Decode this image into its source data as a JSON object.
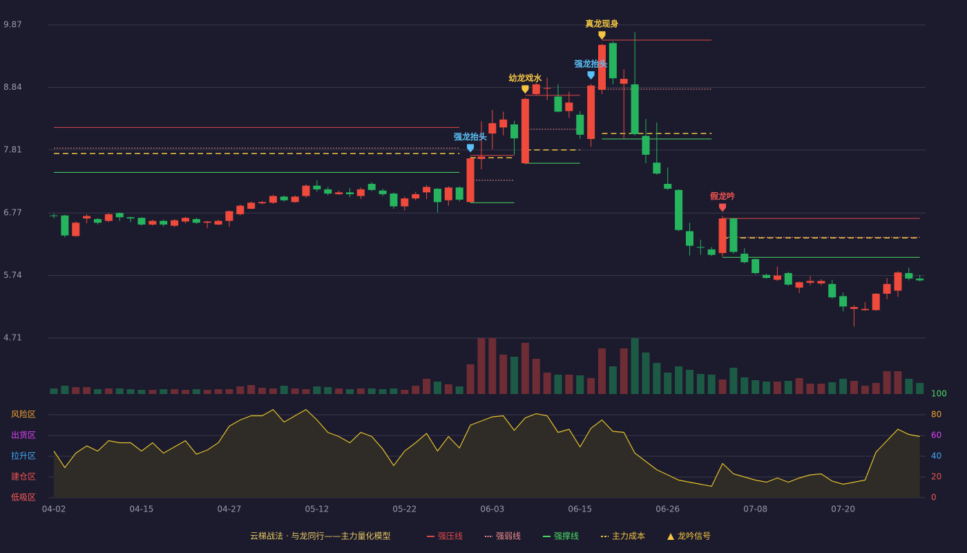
{
  "chart_data": {
    "type": "candlestick",
    "categories": [
      "04-02",
      null,
      null,
      null,
      null,
      null,
      null,
      null,
      "04-15",
      null,
      null,
      null,
      null,
      null,
      null,
      null,
      "04-27",
      null,
      null,
      null,
      null,
      null,
      null,
      null,
      "05-12",
      null,
      null,
      null,
      null,
      null,
      null,
      null,
      "05-22",
      null,
      null,
      null,
      null,
      null,
      null,
      null,
      "06-03",
      null,
      null,
      null,
      null,
      null,
      null,
      null,
      "06-15",
      null,
      null,
      null,
      null,
      null,
      null,
      null,
      "06-26",
      null,
      null,
      null,
      null,
      null,
      null,
      null,
      "07-08",
      null,
      null,
      null,
      null,
      null,
      null,
      null,
      "07-20",
      null,
      null,
      null,
      null,
      null,
      null,
      null
    ],
    "open": [
      6.73,
      6.73,
      6.39,
      6.68,
      6.67,
      6.64,
      6.77,
      6.7,
      6.69,
      6.58,
      6.64,
      6.56,
      6.63,
      6.67,
      6.61,
      6.58,
      6.64,
      6.75,
      6.84,
      6.93,
      6.94,
      7.04,
      6.95,
      7.05,
      7.22,
      7.16,
      7.08,
      7.11,
      7.05,
      7.25,
      7.14,
      7.09,
      6.88,
      7.01,
      7.11,
      7.17,
      6.98,
      7.19,
      6.95,
      7.66,
      8.08,
      8.18,
      8.23,
      7.59,
      8.73,
      8.82,
      8.69,
      8.45,
      8.39,
      7.99,
      8.8,
      9.57,
      8.9,
      8.89,
      8.04,
      7.6,
      7.25,
      7.15,
      6.47,
      6.21,
      6.17,
      6.11,
      6.68,
      6.1,
      6.01,
      5.75,
      5.67,
      5.78,
      5.54,
      5.62,
      5.61,
      5.6,
      5.4,
      5.19,
      5.17,
      5.17,
      5.44,
      5.49,
      5.78,
      5.69
    ],
    "high": [
      6.76,
      6.74,
      6.63,
      6.75,
      6.69,
      6.77,
      6.78,
      6.71,
      6.7,
      6.66,
      6.66,
      6.67,
      6.71,
      6.69,
      6.64,
      6.66,
      6.81,
      6.91,
      6.96,
      6.97,
      7.07,
      7.06,
      7.06,
      7.24,
      7.31,
      7.2,
      7.14,
      7.18,
      7.19,
      7.28,
      7.17,
      7.11,
      7.04,
      7.12,
      7.23,
      7.18,
      7.21,
      7.21,
      7.7,
      8.28,
      8.47,
      8.44,
      8.29,
      8.67,
      8.92,
      9.0,
      8.89,
      8.77,
      8.45,
      8.9,
      9.56,
      9.6,
      9.14,
      9.75,
      8.32,
      8.26,
      7.52,
      7.16,
      6.61,
      6.33,
      6.21,
      6.72,
      6.69,
      6.19,
      6.02,
      5.77,
      5.89,
      5.8,
      5.64,
      5.73,
      5.68,
      5.67,
      5.46,
      5.25,
      5.3,
      5.45,
      5.7,
      5.81,
      5.87,
      5.75
    ],
    "low": [
      6.68,
      6.37,
      6.38,
      6.6,
      6.58,
      6.62,
      6.64,
      6.62,
      6.56,
      6.56,
      6.55,
      6.54,
      6.6,
      6.59,
      6.52,
      6.57,
      6.54,
      6.73,
      6.83,
      6.91,
      6.92,
      6.96,
      6.94,
      7.02,
      7.12,
      7.06,
      7.07,
      7.03,
      7.0,
      7.13,
      7.05,
      6.84,
      6.81,
      6.98,
      7.0,
      6.78,
      6.89,
      6.96,
      6.94,
      7.49,
      7.82,
      8.05,
      7.73,
      7.57,
      8.71,
      8.63,
      8.43,
      8.34,
      7.99,
      7.86,
      8.73,
      8.89,
      8.0,
      8.05,
      7.59,
      7.4,
      7.15,
      6.47,
      6.07,
      6.08,
      6.06,
      6.05,
      6.1,
      5.94,
      5.76,
      5.69,
      5.65,
      5.57,
      5.45,
      5.58,
      5.58,
      5.36,
      5.15,
      4.9,
      5.16,
      5.16,
      5.35,
      5.39,
      5.66,
      5.64
    ],
    "close": [
      6.72,
      6.4,
      6.61,
      6.72,
      6.61,
      6.75,
      6.7,
      6.68,
      6.58,
      6.64,
      6.58,
      6.65,
      6.69,
      6.61,
      6.63,
      6.64,
      6.8,
      6.89,
      6.94,
      6.95,
      7.05,
      6.98,
      7.04,
      7.22,
      7.16,
      7.09,
      7.11,
      7.08,
      7.16,
      7.15,
      7.08,
      6.88,
      7.01,
      7.08,
      7.2,
      6.95,
      7.19,
      6.99,
      7.67,
      7.7,
      8.25,
      8.31,
      8.0,
      8.65,
      8.89,
      8.83,
      8.44,
      8.59,
      8.06,
      8.87,
      9.54,
      8.99,
      8.98,
      8.07,
      7.73,
      7.42,
      7.17,
      6.49,
      6.23,
      6.2,
      6.08,
      6.68,
      6.13,
      5.96,
      5.78,
      5.7,
      5.74,
      5.59,
      5.63,
      5.65,
      5.65,
      5.38,
      5.23,
      5.22,
      5.19,
      5.44,
      5.6,
      5.79,
      5.69,
      5.66
    ],
    "up_color": "#ef4a3c",
    "down_color": "#26b55e",
    "ylim": [
      4.71,
      9.87
    ],
    "yticks": [
      4.71,
      5.74,
      6.77,
      7.81,
      8.84,
      9.87
    ],
    "grid": true,
    "volume": {
      "values": [
        8,
        12,
        10,
        10,
        7,
        8,
        8,
        7,
        6,
        6,
        7,
        7,
        6,
        7,
        6,
        7,
        7,
        11,
        13,
        9,
        8,
        12,
        8,
        7,
        11,
        10,
        8,
        7,
        8,
        8,
        7,
        8,
        6,
        12,
        22,
        18,
        14,
        11,
        43,
        81,
        81,
        57,
        54,
        74,
        51,
        31,
        28,
        28,
        27,
        23,
        66,
        40,
        66,
        81,
        60,
        45,
        31,
        40,
        35,
        29,
        28,
        21,
        38,
        24,
        20,
        18,
        18,
        19,
        23,
        15,
        15,
        17,
        22,
        19,
        12,
        16,
        33,
        33,
        22,
        16
      ],
      "up_color": "#6e2c35",
      "down_color": "#1d5a45"
    },
    "level_lines": [
      {
        "name": "强压线",
        "color": "#e0474c",
        "style": "solid",
        "segments": [
          {
            "start": 0,
            "end": 37,
            "value": 8.18
          },
          {
            "start": 38,
            "end": 42,
            "value": 7.72
          },
          {
            "start": 43,
            "end": 48,
            "value": 8.71
          },
          {
            "start": 50,
            "end": 60,
            "value": 9.62
          },
          {
            "start": 61,
            "end": 79,
            "value": 6.68
          }
        ]
      },
      {
        "name": "强弱线",
        "color": "#f08a8a",
        "style": "dotted",
        "segments": [
          {
            "start": 0,
            "end": 37,
            "value": 7.84
          },
          {
            "start": 38,
            "end": 42,
            "value": 7.31
          },
          {
            "start": 43,
            "end": 48,
            "value": 8.15
          },
          {
            "start": 50,
            "end": 60,
            "value": 8.81
          },
          {
            "start": 61,
            "end": 79,
            "value": 6.37
          }
        ]
      },
      {
        "name": "强撑线",
        "color": "#4cd964",
        "style": "solid",
        "segments": [
          {
            "start": 0,
            "end": 37,
            "value": 7.44
          },
          {
            "start": 38,
            "end": 42,
            "value": 6.94
          },
          {
            "start": 43,
            "end": 48,
            "value": 7.59
          },
          {
            "start": 50,
            "end": 60,
            "value": 7.99
          },
          {
            "start": 61,
            "end": 79,
            "value": 6.04
          }
        ]
      },
      {
        "name": "主力成本",
        "color": "#f5c542",
        "style": "dashed",
        "segments": [
          {
            "start": 0,
            "end": 37,
            "value": 7.75
          },
          {
            "start": 38,
            "end": 42,
            "value": 7.68
          },
          {
            "start": 43,
            "end": 48,
            "value": 7.81
          },
          {
            "start": 50,
            "end": 60,
            "value": 8.08
          },
          {
            "start": 61,
            "end": 79,
            "value": 6.36
          }
        ]
      }
    ],
    "signals": {
      "name": "龙吟信号",
      "color": "#f5c542",
      "points": [
        {
          "index": 38,
          "label": "强龙抬头",
          "color": "#5bc0f8"
        },
        {
          "index": 43,
          "label": "幼龙戏水",
          "color": "#f5c542"
        },
        {
          "index": 49,
          "label": "强龙抬头",
          "color": "#5bc0f8"
        },
        {
          "index": 50,
          "label": "真龙现身",
          "color": "#f5c542"
        },
        {
          "index": 61,
          "label": "假龙吟",
          "color": "#ef5350"
        }
      ]
    },
    "oscillator": {
      "values": [
        45,
        29,
        43,
        50,
        45,
        55,
        53,
        53,
        45,
        53,
        43,
        49,
        55,
        42,
        46,
        53,
        69,
        75,
        79,
        79,
        85,
        73,
        79,
        85,
        75,
        63,
        59,
        53,
        63,
        59,
        47,
        31,
        45,
        53,
        62,
        45,
        59,
        48,
        70,
        74,
        78,
        79,
        65,
        77,
        81,
        79,
        63,
        66,
        49,
        67,
        75,
        64,
        63,
        43,
        35,
        27,
        22,
        17,
        15,
        13,
        11,
        33,
        23,
        20,
        17,
        15,
        19,
        15,
        19,
        22,
        23,
        16,
        13,
        15,
        17,
        44,
        55,
        66,
        61,
        59
      ],
      "ylim": [
        0,
        100
      ],
      "yticks": [
        0,
        20,
        40,
        60,
        80,
        100
      ],
      "tick_colors": [
        "#ef5350",
        "#ef5350",
        "#42a5f5",
        "#e040fb",
        "#f0a030",
        "#4cd964"
      ],
      "zones": [
        {
          "value": 80,
          "label": "风险区",
          "color": "#f0a030"
        },
        {
          "value": 60,
          "label": "出货区",
          "color": "#e040fb"
        },
        {
          "value": 40,
          "label": "拉升区",
          "color": "#42a5f5"
        },
        {
          "value": 20,
          "label": "建仓区",
          "color": "#ef5350"
        },
        {
          "value": 0,
          "label": "低吸区",
          "color": "#ff5a5a"
        }
      ],
      "line_color": "#e6c229",
      "fill_color": "#2f2c28"
    },
    "legend_title": "云梯战法 · 与龙同行——主力量化模型"
  }
}
